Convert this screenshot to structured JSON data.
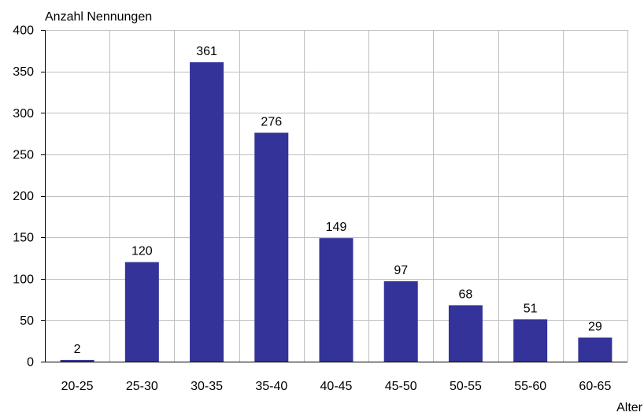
{
  "chart_data": {
    "type": "bar",
    "ylabel": "Anzahl Nennungen",
    "xlabel": "Alter",
    "categories": [
      "20-25",
      "25-30",
      "30-35",
      "35-40",
      "40-45",
      "45-50",
      "50-55",
      "55-60",
      "60-65"
    ],
    "values": [
      2,
      120,
      361,
      276,
      149,
      97,
      68,
      51,
      29
    ],
    "ylim": [
      0,
      400
    ],
    "yticks": [
      0,
      50,
      100,
      150,
      200,
      250,
      300,
      350,
      400
    ],
    "grid": true,
    "bar_color": "#333399",
    "grid_color": "#c0c0c0"
  }
}
